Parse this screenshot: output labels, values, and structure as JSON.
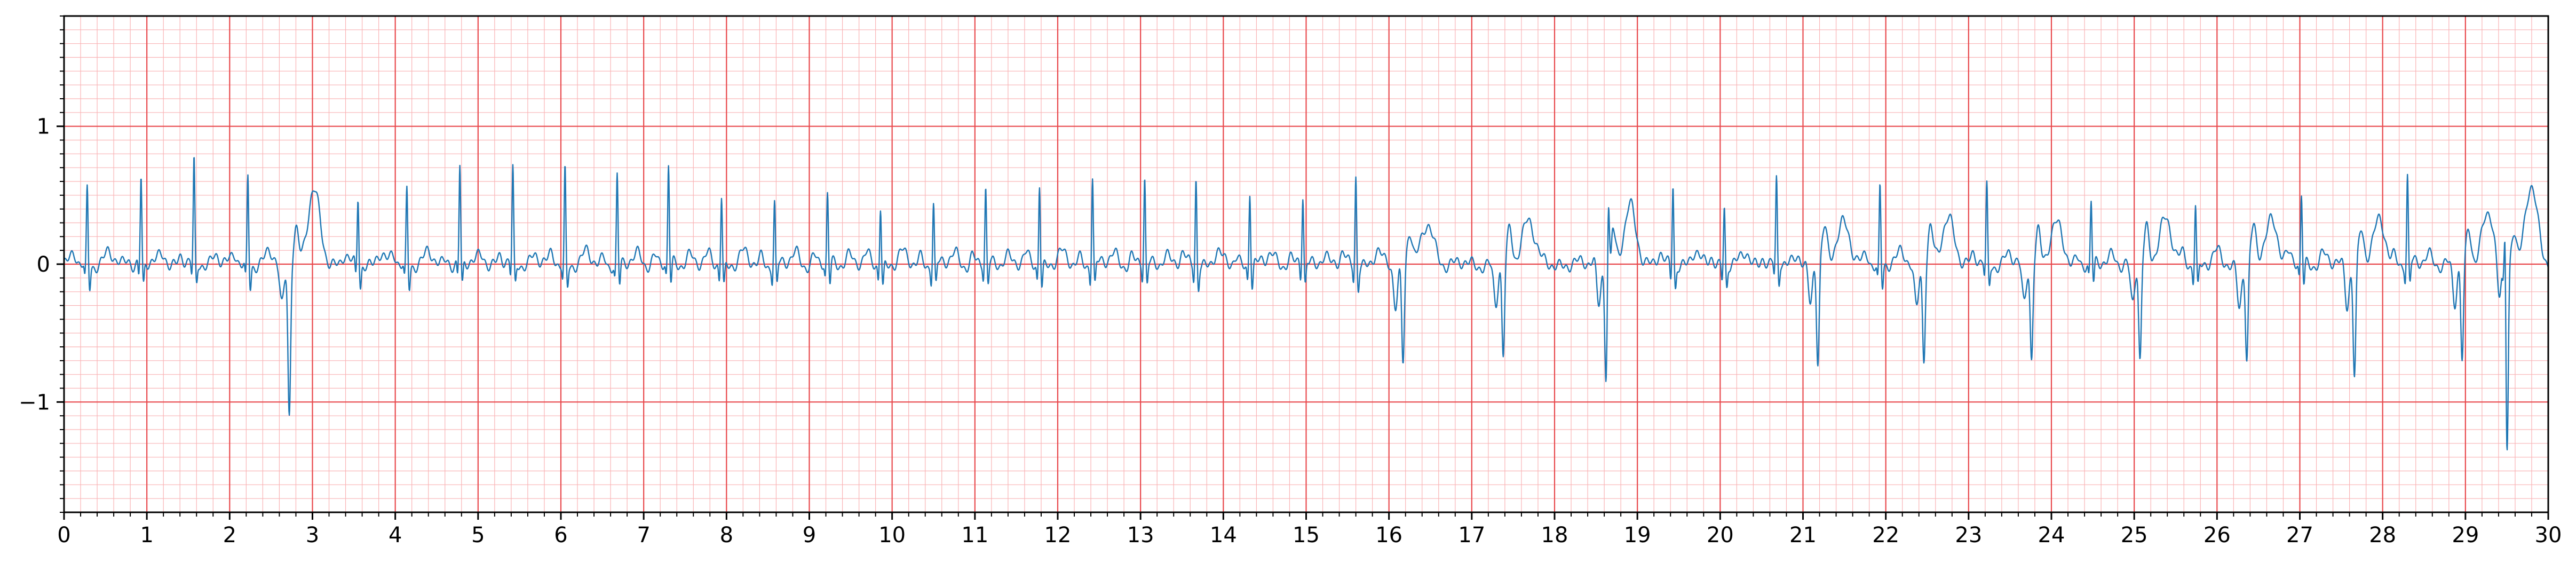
{
  "chart_data": {
    "type": "line",
    "title": "",
    "xlabel": "",
    "ylabel": "",
    "xlim": [
      0,
      30
    ],
    "ylim": [
      -1.8,
      1.8
    ],
    "x_ticks": [
      "0",
      "1",
      "2",
      "3",
      "4",
      "5",
      "6",
      "7",
      "8",
      "9",
      "10",
      "11",
      "12",
      "13",
      "14",
      "15",
      "16",
      "17",
      "18",
      "19",
      "20",
      "21",
      "22",
      "23",
      "24",
      "25",
      "26",
      "27",
      "28",
      "29",
      "30"
    ],
    "y_ticks": [
      {
        "value": 1,
        "label": "1"
      },
      {
        "value": 0,
        "label": "0"
      },
      {
        "value": -1,
        "label": "−1"
      }
    ],
    "grid": {
      "major": true,
      "minor": true,
      "major_step_x": 1,
      "minor_step_x": 0.2,
      "major_step_y": 1,
      "minor_step_y": 0.1
    },
    "colors": {
      "trace": "#1f77b4",
      "major_grid": "#e8494d",
      "minor_grid": "#f9b3b5",
      "axes": "#000000",
      "background": "#ffffff"
    },
    "series": [
      {
        "style": "ecg",
        "beats_positive": [
          {
            "t": 0.28,
            "r": 0.5
          },
          {
            "t": 0.93,
            "r": 0.58
          },
          {
            "t": 1.57,
            "r": 0.68
          },
          {
            "t": 2.22,
            "r": 0.6
          },
          {
            "t": 3.55,
            "r": 0.44
          },
          {
            "t": 4.14,
            "r": 0.5
          },
          {
            "t": 4.78,
            "r": 0.66
          },
          {
            "t": 5.42,
            "r": 0.62
          },
          {
            "t": 6.05,
            "r": 0.64
          },
          {
            "t": 6.68,
            "r": 0.58
          },
          {
            "t": 7.3,
            "r": 0.64
          },
          {
            "t": 7.94,
            "r": 0.46
          },
          {
            "t": 8.58,
            "r": 0.4
          },
          {
            "t": 9.22,
            "r": 0.44
          },
          {
            "t": 9.86,
            "r": 0.38
          },
          {
            "t": 10.5,
            "r": 0.4
          },
          {
            "t": 11.13,
            "r": 0.48
          },
          {
            "t": 11.78,
            "r": 0.55
          },
          {
            "t": 12.42,
            "r": 0.6
          },
          {
            "t": 13.05,
            "r": 0.56
          },
          {
            "t": 13.67,
            "r": 0.58
          },
          {
            "t": 14.32,
            "r": 0.5
          },
          {
            "t": 14.96,
            "r": 0.44
          },
          {
            "t": 15.6,
            "r": 0.6
          },
          {
            "t": 18.65,
            "r": 0.4
          },
          {
            "t": 19.43,
            "r": 0.55
          },
          {
            "t": 20.05,
            "r": 0.38
          },
          {
            "t": 20.68,
            "r": 0.54
          },
          {
            "t": 21.93,
            "r": 0.52
          },
          {
            "t": 23.22,
            "r": 0.5
          },
          {
            "t": 24.48,
            "r": 0.38
          },
          {
            "t": 25.74,
            "r": 0.4
          },
          {
            "t": 27.02,
            "r": 0.44
          },
          {
            "t": 28.3,
            "r": 0.58
          },
          {
            "t": 29.48,
            "r": 0.58
          }
        ],
        "beats_ectopic": [
          {
            "t": 2.72,
            "s": -1.08,
            "tw": 0.52
          },
          {
            "t": 16.17,
            "s": -0.7,
            "tw": 0.28
          },
          {
            "t": 17.38,
            "s": -0.7,
            "tw": 0.33
          },
          {
            "t": 18.62,
            "s": -0.7,
            "tw": 0.35
          },
          {
            "t": 21.18,
            "s": -0.72,
            "tw": 0.32
          },
          {
            "t": 22.46,
            "s": -0.68,
            "tw": 0.33
          },
          {
            "t": 23.76,
            "s": -0.68,
            "tw": 0.28
          },
          {
            "t": 25.07,
            "s": -0.72,
            "tw": 0.33
          },
          {
            "t": 26.36,
            "s": -0.7,
            "tw": 0.33
          },
          {
            "t": 27.66,
            "s": -0.78,
            "tw": 0.3
          },
          {
            "t": 28.96,
            "s": -0.7,
            "tw": 0.33
          },
          {
            "t": 29.5,
            "s": -1.24,
            "tw": 0.5
          }
        ]
      }
    ]
  }
}
